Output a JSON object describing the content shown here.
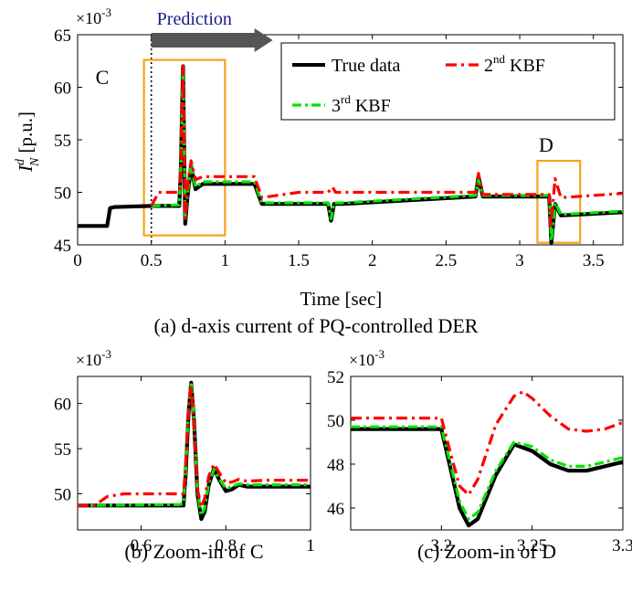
{
  "chart_data": [
    {
      "type": "line",
      "panel": "a",
      "caption": "(a) d-axis current of PQ-controlled DER",
      "xlabel": "Time [sec]",
      "ylabel": "I",
      "ylabel_sup": "d",
      "ylabel_sub": "N",
      "ylabel_unit": " [p.u.]",
      "scale_label": "×10",
      "scale_exp": "-3",
      "xlim": [
        0,
        3.7
      ],
      "ylim": [
        45,
        65
      ],
      "xticks": [
        "0",
        "0.5",
        "1",
        "1.5",
        "2",
        "2.5",
        "3",
        "3.5"
      ],
      "yticks": [
        "45",
        "50",
        "55",
        "60",
        "65"
      ],
      "prediction_label": "Prediction",
      "prediction_start": 0.5,
      "annotations": [
        "C",
        "D"
      ],
      "legend": {
        "position": "top-right",
        "entries": [
          {
            "label": "True data"
          },
          {
            "label": "2",
            "sup": "nd",
            "suffix": " KBF"
          },
          {
            "label": "3",
            "sup": "rd",
            "suffix": " KBF"
          }
        ]
      },
      "series": [
        {
          "name": "True data",
          "color": "#000000",
          "x": [
            0,
            0.2,
            0.22,
            0.25,
            0.5,
            0.69,
            0.7,
            0.715,
            0.73,
            0.745,
            0.77,
            0.8,
            0.85,
            1.2,
            1.25,
            1.7,
            1.72,
            1.74,
            1.8,
            2.7,
            2.72,
            2.75,
            3.2,
            3.215,
            3.24,
            3.28,
            3.7
          ],
          "y": [
            46.8,
            46.8,
            48.5,
            48.6,
            48.7,
            48.7,
            52,
            62,
            47,
            49.5,
            52.5,
            50.3,
            50.8,
            50.8,
            48.9,
            48.9,
            47.3,
            48.9,
            48.9,
            49.6,
            51.5,
            49.6,
            49.6,
            45.2,
            48.9,
            47.8,
            48.1
          ]
        },
        {
          "name": "2nd KBF",
          "color": "#ff0000",
          "x": [
            0.5,
            0.55,
            0.69,
            0.7,
            0.715,
            0.73,
            0.745,
            0.77,
            0.8,
            0.85,
            1.2,
            1.25,
            1.5,
            1.7,
            1.73,
            1.75,
            2.7,
            2.72,
            2.75,
            3.2,
            3.21,
            3.24,
            3.28,
            3.7
          ],
          "y": [
            48.7,
            50.0,
            50.0,
            52,
            62,
            47.5,
            50.5,
            53,
            51.2,
            51.5,
            51.5,
            49.5,
            50.0,
            50.0,
            50.5,
            50.0,
            50.0,
            51.8,
            49.8,
            49.8,
            46.6,
            51.3,
            49.5,
            49.9
          ]
        },
        {
          "name": "3rd KBF",
          "color": "#00e600",
          "x": [
            0.5,
            0.69,
            0.7,
            0.715,
            0.73,
            0.745,
            0.77,
            0.8,
            0.85,
            1.2,
            1.25,
            1.7,
            1.72,
            1.74,
            1.8,
            2.7,
            2.72,
            2.75,
            3.2,
            3.215,
            3.24,
            3.28,
            3.7
          ],
          "y": [
            48.7,
            48.8,
            52,
            62,
            47.5,
            49.8,
            52.5,
            50.5,
            51.0,
            51.0,
            49.0,
            49.0,
            47.5,
            49.0,
            49.0,
            49.7,
            51.2,
            49.7,
            49.7,
            45.4,
            49.0,
            47.9,
            48.2
          ]
        }
      ]
    },
    {
      "type": "line",
      "panel": "b",
      "caption": "(b) Zoom-in of C",
      "scale_label": "×10",
      "scale_exp": "-3",
      "xlim": [
        0.45,
        1.0
      ],
      "ylim": [
        46,
        63
      ],
      "xticks": [
        "0.6",
        "0.8",
        "1"
      ],
      "yticks": [
        "50",
        "55",
        "60"
      ],
      "series": [
        {
          "name": "True data",
          "color": "#000000",
          "x": [
            0.45,
            0.69,
            0.7,
            0.705,
            0.712,
            0.718,
            0.725,
            0.733,
            0.742,
            0.75,
            0.76,
            0.772,
            0.785,
            0.8,
            0.815,
            0.83,
            0.85,
            0.9,
            1.0
          ],
          "y": [
            48.7,
            48.7,
            48.7,
            52,
            59,
            62.3,
            58,
            50,
            47.2,
            48,
            51,
            52.8,
            51.5,
            50.3,
            50.5,
            51,
            50.8,
            50.8,
            50.8
          ]
        },
        {
          "name": "2nd KBF",
          "color": "#ff0000",
          "x": [
            0.45,
            0.49,
            0.52,
            0.56,
            0.69,
            0.7,
            0.705,
            0.712,
            0.718,
            0.725,
            0.733,
            0.742,
            0.75,
            0.76,
            0.772,
            0.785,
            0.8,
            0.815,
            0.83,
            0.85,
            0.9,
            1.0
          ],
          "y": [
            48.7,
            48.7,
            49.7,
            50.0,
            50.0,
            50.0,
            53,
            59.5,
            62,
            57.5,
            50.5,
            48.5,
            49.5,
            52,
            53.3,
            52.3,
            51.2,
            51.3,
            51.6,
            51.4,
            51.5,
            51.5
          ]
        },
        {
          "name": "3rd KBF",
          "color": "#00e600",
          "x": [
            0.45,
            0.69,
            0.7,
            0.705,
            0.712,
            0.718,
            0.725,
            0.733,
            0.742,
            0.75,
            0.76,
            0.772,
            0.785,
            0.8,
            0.815,
            0.83,
            0.85,
            0.9,
            1.0
          ],
          "y": [
            48.7,
            48.8,
            48.9,
            52.5,
            59.5,
            62.4,
            58,
            50.2,
            47.6,
            48.4,
            51.2,
            52.7,
            51.6,
            50.6,
            50.8,
            51.1,
            51.0,
            51.0,
            51.0
          ]
        }
      ]
    },
    {
      "type": "line",
      "panel": "c",
      "caption": "(c) Zoom-in of D",
      "scale_label": "×10",
      "scale_exp": "-3",
      "xlim": [
        3.15,
        3.3
      ],
      "ylim": [
        45,
        52
      ],
      "xticks": [
        "3.2",
        "3.25",
        "3.3"
      ],
      "yticks": [
        "46",
        "48",
        "50",
        "52"
      ],
      "series": [
        {
          "name": "True data",
          "color": "#000000",
          "x": [
            3.15,
            3.2,
            3.205,
            3.21,
            3.215,
            3.22,
            3.23,
            3.24,
            3.25,
            3.26,
            3.27,
            3.28,
            3.29,
            3.3
          ],
          "y": [
            49.6,
            49.6,
            47.8,
            46.0,
            45.2,
            45.5,
            47.5,
            48.9,
            48.6,
            48.0,
            47.7,
            47.7,
            47.9,
            48.1
          ]
        },
        {
          "name": "2nd KBF",
          "color": "#ff0000",
          "x": [
            3.15,
            3.2,
            3.205,
            3.21,
            3.215,
            3.22,
            3.23,
            3.24,
            3.245,
            3.25,
            3.26,
            3.27,
            3.28,
            3.29,
            3.3
          ],
          "y": [
            50.1,
            50.1,
            48.5,
            47.0,
            46.6,
            47.3,
            49.8,
            51.1,
            51.3,
            51.0,
            50.2,
            49.6,
            49.5,
            49.6,
            49.9
          ]
        },
        {
          "name": "3rd KBF",
          "color": "#00e600",
          "x": [
            3.15,
            3.2,
            3.205,
            3.21,
            3.215,
            3.22,
            3.23,
            3.24,
            3.25,
            3.26,
            3.27,
            3.28,
            3.29,
            3.3
          ],
          "y": [
            49.7,
            49.7,
            48.0,
            46.3,
            45.5,
            45.8,
            47.7,
            49.0,
            48.8,
            48.2,
            47.9,
            47.9,
            48.1,
            48.3
          ]
        }
      ]
    }
  ]
}
